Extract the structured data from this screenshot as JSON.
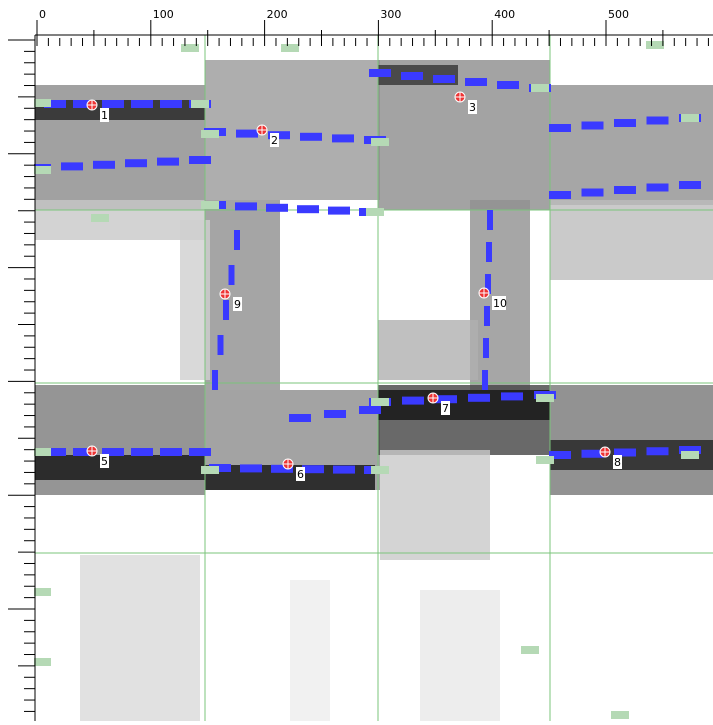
{
  "ruler": {
    "labels": [
      "0",
      "100",
      "200",
      "300",
      "400",
      "500"
    ]
  },
  "markers": [
    {
      "label": "1"
    },
    {
      "label": "2"
    },
    {
      "label": "3"
    },
    {
      "label": "5"
    },
    {
      "label": "6"
    },
    {
      "label": "7"
    },
    {
      "label": "8"
    },
    {
      "label": "9"
    },
    {
      "label": "10"
    }
  ]
}
